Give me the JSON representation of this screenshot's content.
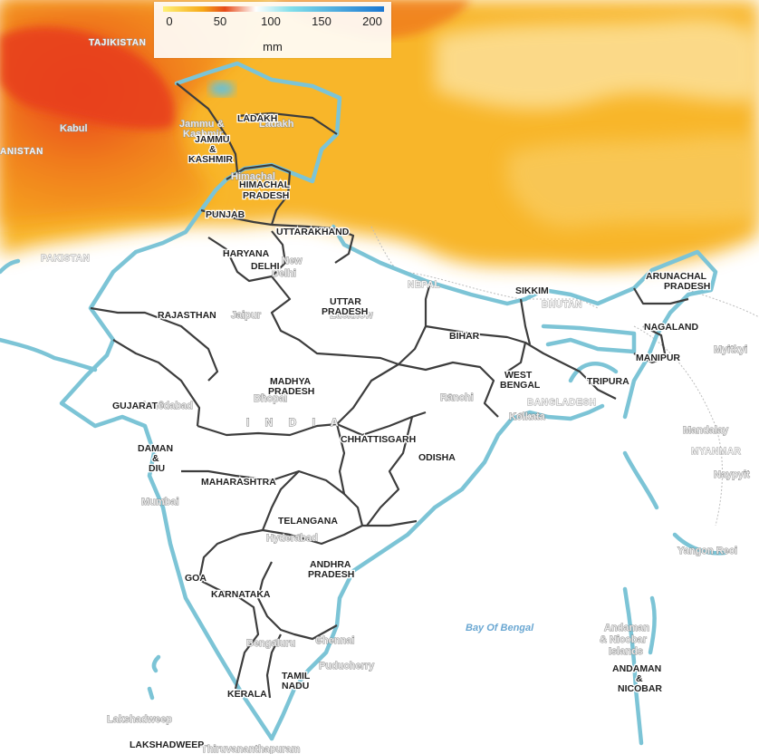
{
  "legend": {
    "ticks": [
      "0",
      "50",
      "100",
      "150",
      "200"
    ],
    "unit": "mm",
    "colors": [
      "#fff176",
      "#f6a817",
      "#e64a19",
      "#ffffff",
      "#80deea",
      "#1976d2"
    ]
  },
  "map": {
    "country_label": "I N D I A",
    "states": {
      "ladakh": "LADAKH",
      "jammu1": "JAMMU",
      "jammu2": "&",
      "jammu3": "KASHMIR",
      "himachal1": "HIMACHAL",
      "himachal2": "PRADESH",
      "punjab": "PUNJAB",
      "uttarakhand": "UTTARAKHAND",
      "haryana": "HARYANA",
      "delhi": "DELHI",
      "rajasthan": "RAJASTHAN",
      "up1": "UTTAR",
      "up2": "PRADESH",
      "bihar": "BIHAR",
      "sikkim": "SIKKIM",
      "arunachal1": "ARUNACHAL",
      "arunachal2": "PRADESH",
      "nagaland": "NAGALAND",
      "manipur": "MANIPUR",
      "tripura": "TRIPURA",
      "wb1": "WEST",
      "wb2": "BENGAL",
      "mp1": "MADHYA",
      "mp2": "PRADESH",
      "gujarat": "GUJARAT",
      "daman1": "DAMAN",
      "daman2": "&",
      "daman3": "DIU",
      "chhattisgarh": "CHHATTISGARH",
      "odisha": "ODISHA",
      "maharashtra": "MAHARASHTRA",
      "telangana": "TELANGANA",
      "ap1": "ANDHRA",
      "ap2": "PRADESH",
      "goa": "GOA",
      "karnataka": "KARNATAKA",
      "tn1": "TAMIL",
      "tn2": "NADU",
      "kerala": "KERALA",
      "lakshadweep": "LAKSHADWEEP",
      "andaman1": "ANDAMAN",
      "andaman2": "&",
      "andaman3": "NICOBAR"
    },
    "cities": {
      "kabul": "Kabul",
      "ladakh_city": "Ladakh",
      "jk_city1": "Jammu &",
      "jk_city2": "Kashmir",
      "himachal_city": "Himachal",
      "new_delhi1": "New",
      "new_delhi2": "Delhi",
      "jaipur": "Jaipur",
      "lucknow": "Lucknow",
      "bhopal": "Bhopal",
      "ahmedabad": "Ahmedabad",
      "ranchi": "Ranchi",
      "kolkata": "Kolkata",
      "mumbai": "Mumbai",
      "hyderabad": "Hyderabad",
      "bengaluru": "Bengaluru",
      "chennai": "Chennai",
      "puducherry": "Puducherry",
      "lakshadweep_city": "Lakshadweep",
      "thiruvananthapuram": "Thiruvananthapuram",
      "mandalay": "Mandalay",
      "naypyidaw": "Naypyit",
      "yangon": "Yangon Reci",
      "myitkyina": "Myitkyi",
      "andaman_city1": "Andaman",
      "andaman_city2": "& Nicobar",
      "andaman_city3": "Islands"
    },
    "countries": {
      "tajikistan": "TAJIKISTAN",
      "afghanistan": "ANISTAN",
      "pakistan": "PAKISTAN",
      "nepal": "NEPAL",
      "bhutan": "BHUTAN",
      "bangladesh": "BANGLADESH",
      "myanmar": "MYANMAR"
    },
    "water": {
      "bay_of_bengal": "Bay Of Bengal"
    }
  }
}
